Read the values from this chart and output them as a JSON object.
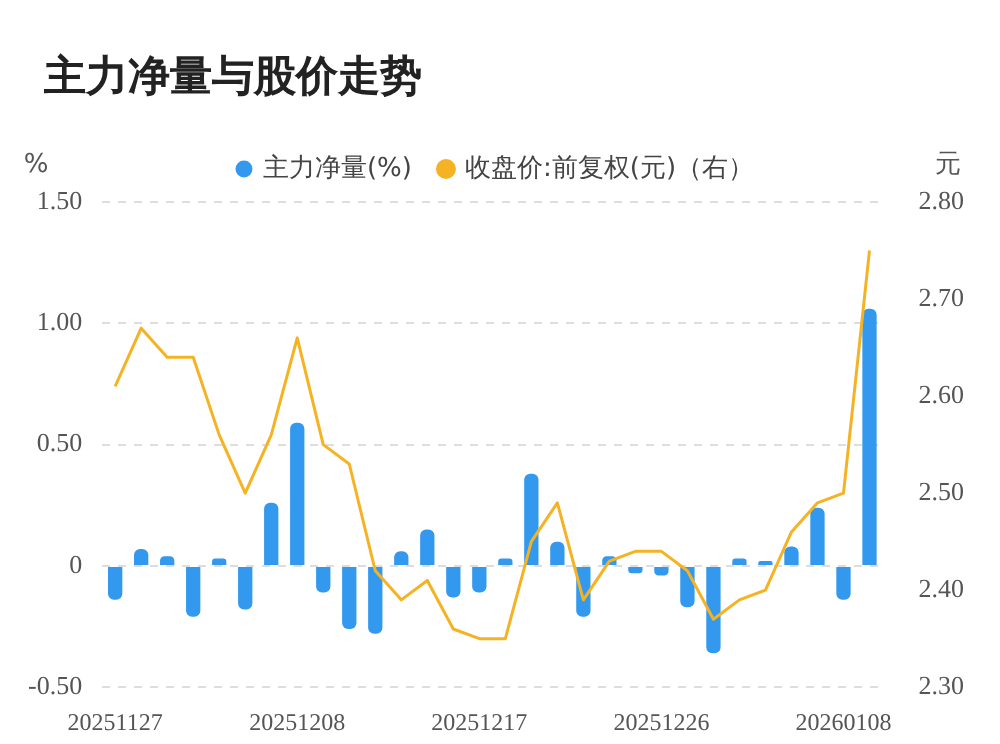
{
  "chart_data": {
    "type": "bar",
    "title": "主力净量与股价走势",
    "ylabel": "%",
    "y2label": "元",
    "categories": [
      "20251127",
      null,
      null,
      null,
      null,
      null,
      null,
      "20251208",
      null,
      null,
      null,
      null,
      null,
      null,
      "20251217",
      null,
      null,
      null,
      null,
      null,
      null,
      "20251226",
      null,
      null,
      null,
      null,
      null,
      null,
      "20260108",
      null
    ],
    "series": [
      {
        "name": "主力净量(%)",
        "color": "#3399ee",
        "values": [
          -0.14,
          0.07,
          0.04,
          -0.21,
          0.03,
          -0.18,
          0.26,
          0.59,
          -0.11,
          -0.26,
          -0.28,
          0.06,
          0.15,
          -0.13,
          -0.11,
          0.03,
          0.38,
          0.1,
          -0.21,
          0.04,
          -0.03,
          -0.04,
          -0.17,
          -0.36,
          0.03,
          0.02,
          0.08,
          0.24,
          -0.14,
          1.06
        ]
      },
      {
        "name": "收盘价:前复权(元)（右）",
        "type": "line",
        "axis": "y2",
        "color": "#f5b324",
        "values": [
          2.61,
          2.67,
          2.64,
          2.64,
          2.56,
          2.5,
          2.56,
          2.66,
          2.55,
          2.53,
          2.42,
          2.39,
          2.41,
          2.36,
          2.35,
          2.35,
          2.45,
          2.49,
          2.39,
          2.43,
          2.44,
          2.44,
          2.42,
          2.37,
          2.39,
          2.4,
          2.46,
          2.49,
          2.5,
          2.75
        ]
      }
    ],
    "ylim": [
      -0.5,
      1.5
    ],
    "yticks": [
      {
        "value": -0.5,
        "label": "-0.50"
      },
      {
        "value": 0,
        "label": "0"
      },
      {
        "value": 0.5,
        "label": "0.50"
      },
      {
        "value": 1,
        "label": "1.00"
      },
      {
        "value": 1.5,
        "label": "1.50"
      }
    ],
    "y2lim": [
      2.3,
      2.8
    ],
    "y2ticks": [
      {
        "value": 2.3,
        "label": "2.30"
      },
      {
        "value": 2.4,
        "label": "2.40"
      },
      {
        "value": 2.5,
        "label": "2.50"
      },
      {
        "value": 2.6,
        "label": "2.60"
      },
      {
        "value": 2.7,
        "label": "2.70"
      },
      {
        "value": 2.8,
        "label": "2.80"
      }
    ],
    "grid": "y",
    "legend": "top",
    "marker": "none",
    "line_style": "solid"
  }
}
